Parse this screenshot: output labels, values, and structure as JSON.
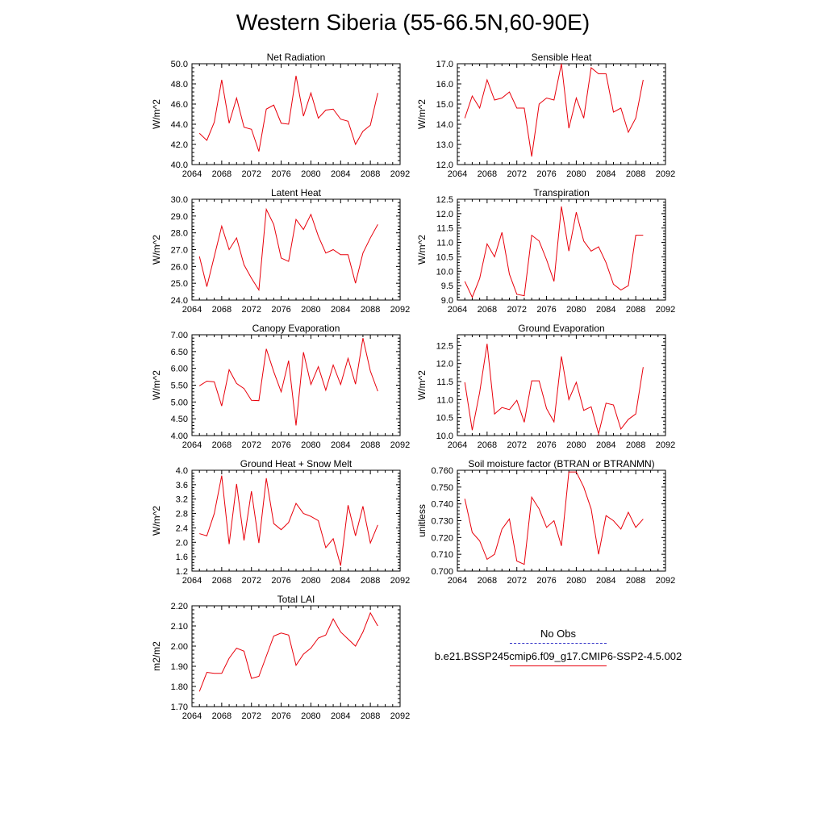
{
  "title": "Western Siberia (55-66.5N,60-90E)",
  "line_color": "#e8000b",
  "obs_color": "#3232c8",
  "legend": {
    "obs_label": "No Obs",
    "model_label": "b.e21.BSSP245cmip6.f09_g17.CMIP6-SSP2-4.5.002"
  },
  "chart_data": [
    {
      "type": "line",
      "title": "Net Radiation",
      "ylabel": "W/m^2",
      "xlim": [
        2064,
        2092
      ],
      "ylim": [
        40.0,
        50.0
      ],
      "xticks": [
        "2064",
        "2068",
        "2072",
        "2076",
        "2080",
        "2084",
        "2088",
        "2092"
      ],
      "yticks": [
        "40.0",
        "42.0",
        "44.0",
        "46.0",
        "48.0",
        "50.0"
      ],
      "x": [
        2065,
        2066,
        2067,
        2068,
        2069,
        2070,
        2071,
        2072,
        2073,
        2074,
        2075,
        2076,
        2077,
        2078,
        2079,
        2080,
        2081,
        2082,
        2083,
        2084,
        2085,
        2086,
        2087,
        2088,
        2089
      ],
      "series": [
        {
          "values": [
            43.1,
            42.4,
            44.2,
            48.4,
            44.1,
            46.6,
            43.7,
            43.5,
            41.3,
            45.5,
            45.9,
            44.1,
            44.0,
            48.8,
            44.8,
            47.1,
            44.6,
            45.4,
            45.5,
            44.5,
            44.3,
            42.0,
            43.3,
            43.9,
            47.1
          ]
        }
      ]
    },
    {
      "type": "line",
      "title": "Sensible Heat",
      "ylabel": "W/m^2",
      "xlim": [
        2064,
        2092
      ],
      "ylim": [
        12.0,
        17.0
      ],
      "xticks": [
        "2064",
        "2068",
        "2072",
        "2076",
        "2080",
        "2084",
        "2088",
        "2092"
      ],
      "yticks": [
        "12.0",
        "13.0",
        "14.0",
        "15.0",
        "16.0",
        "17.0"
      ],
      "x": [
        2065,
        2066,
        2067,
        2068,
        2069,
        2070,
        2071,
        2072,
        2073,
        2074,
        2075,
        2076,
        2077,
        2078,
        2079,
        2080,
        2081,
        2082,
        2083,
        2084,
        2085,
        2086,
        2087,
        2088,
        2089
      ],
      "series": [
        {
          "values": [
            14.3,
            15.4,
            14.8,
            16.2,
            15.2,
            15.3,
            15.6,
            14.8,
            14.8,
            12.4,
            15.0,
            15.3,
            15.2,
            17.0,
            13.8,
            15.3,
            14.3,
            16.8,
            16.5,
            16.5,
            14.6,
            14.8,
            13.6,
            14.3,
            16.2
          ]
        }
      ]
    },
    {
      "type": "line",
      "title": "Latent Heat",
      "ylabel": "W/m^2",
      "xlim": [
        2064,
        2092
      ],
      "ylim": [
        24.0,
        30.0
      ],
      "xticks": [
        "2064",
        "2068",
        "2072",
        "2076",
        "2080",
        "2084",
        "2088",
        "2092"
      ],
      "yticks": [
        "24.0",
        "25.0",
        "26.0",
        "27.0",
        "28.0",
        "29.0",
        "30.0"
      ],
      "x": [
        2065,
        2066,
        2067,
        2068,
        2069,
        2070,
        2071,
        2072,
        2073,
        2074,
        2075,
        2076,
        2077,
        2078,
        2079,
        2080,
        2081,
        2082,
        2083,
        2084,
        2085,
        2086,
        2087,
        2088,
        2089
      ],
      "series": [
        {
          "values": [
            26.6,
            24.8,
            26.6,
            28.4,
            27.0,
            27.7,
            26.1,
            25.3,
            24.6,
            29.4,
            28.5,
            26.5,
            26.3,
            28.8,
            28.2,
            29.1,
            27.8,
            26.8,
            27.0,
            26.7,
            26.7,
            25.0,
            26.8,
            27.7,
            28.5
          ]
        }
      ]
    },
    {
      "type": "line",
      "title": "Transpiration",
      "ylabel": "W/m^2",
      "xlim": [
        2064,
        2092
      ],
      "ylim": [
        9.0,
        12.5
      ],
      "xticks": [
        "2064",
        "2068",
        "2072",
        "2076",
        "2080",
        "2084",
        "2088",
        "2092"
      ],
      "yticks": [
        "9.0",
        "9.5",
        "10.0",
        "10.5",
        "11.0",
        "11.5",
        "12.0",
        "12.5"
      ],
      "x": [
        2065,
        2066,
        2067,
        2068,
        2069,
        2070,
        2071,
        2072,
        2073,
        2074,
        2075,
        2076,
        2077,
        2078,
        2079,
        2080,
        2081,
        2082,
        2083,
        2084,
        2085,
        2086,
        2087,
        2088,
        2089
      ],
      "series": [
        {
          "values": [
            9.65,
            9.1,
            9.75,
            10.95,
            10.5,
            11.35,
            9.9,
            9.2,
            9.15,
            11.25,
            11.05,
            10.4,
            9.65,
            12.25,
            10.7,
            12.05,
            11.05,
            10.7,
            10.85,
            10.3,
            9.55,
            9.35,
            9.5,
            11.25,
            11.25
          ]
        }
      ]
    },
    {
      "type": "line",
      "title": "Canopy Evaporation",
      "ylabel": "W/m^2",
      "xlim": [
        2064,
        2092
      ],
      "ylim": [
        4.0,
        7.0
      ],
      "xticks": [
        "2064",
        "2068",
        "2072",
        "2076",
        "2080",
        "2084",
        "2088",
        "2092"
      ],
      "yticks": [
        "4.00",
        "4.50",
        "5.00",
        "5.50",
        "6.00",
        "6.50",
        "7.00"
      ],
      "x": [
        2065,
        2066,
        2067,
        2068,
        2069,
        2070,
        2071,
        2072,
        2073,
        2074,
        2075,
        2076,
        2077,
        2078,
        2079,
        2080,
        2081,
        2082,
        2083,
        2084,
        2085,
        2086,
        2087,
        2088,
        2089
      ],
      "series": [
        {
          "values": [
            5.48,
            5.62,
            5.6,
            4.88,
            5.96,
            5.55,
            5.4,
            5.05,
            5.04,
            6.58,
            5.9,
            5.3,
            6.23,
            4.3,
            6.48,
            5.52,
            6.05,
            5.35,
            6.1,
            5.52,
            6.3,
            5.53,
            6.9,
            5.92,
            5.32
          ]
        }
      ]
    },
    {
      "type": "line",
      "title": "Ground Evaporation",
      "ylabel": "W/m^2",
      "xlim": [
        2064,
        2092
      ],
      "ylim": [
        10.0,
        12.8
      ],
      "xticks": [
        "2064",
        "2068",
        "2072",
        "2076",
        "2080",
        "2084",
        "2088",
        "2092"
      ],
      "yticks": [
        "10.0",
        "10.5",
        "11.0",
        "11.5",
        "12.0",
        "12.5"
      ],
      "x": [
        2065,
        2066,
        2067,
        2068,
        2069,
        2070,
        2071,
        2072,
        2073,
        2074,
        2075,
        2076,
        2077,
        2078,
        2079,
        2080,
        2081,
        2082,
        2083,
        2084,
        2085,
        2086,
        2087,
        2088,
        2089
      ],
      "series": [
        {
          "values": [
            11.48,
            10.15,
            11.2,
            12.55,
            10.6,
            10.78,
            10.72,
            10.98,
            10.37,
            11.52,
            11.52,
            10.75,
            10.38,
            12.2,
            11.0,
            11.48,
            10.7,
            10.8,
            10.05,
            10.9,
            10.85,
            10.18,
            10.45,
            10.6,
            11.9
          ]
        }
      ]
    },
    {
      "type": "line",
      "title": "Ground Heat + Snow Melt",
      "ylabel": "W/m^2",
      "xlim": [
        2064,
        2092
      ],
      "ylim": [
        1.2,
        4.0
      ],
      "xticks": [
        "2064",
        "2068",
        "2072",
        "2076",
        "2080",
        "2084",
        "2088",
        "2092"
      ],
      "yticks": [
        "1.2",
        "1.6",
        "2.0",
        "2.4",
        "2.8",
        "3.2",
        "3.6",
        "4.0"
      ],
      "x": [
        2065,
        2066,
        2067,
        2068,
        2069,
        2070,
        2071,
        2072,
        2073,
        2074,
        2075,
        2076,
        2077,
        2078,
        2079,
        2080,
        2081,
        2082,
        2083,
        2084,
        2085,
        2086,
        2087,
        2088,
        2089
      ],
      "series": [
        {
          "values": [
            2.24,
            2.18,
            2.8,
            3.85,
            1.95,
            3.62,
            2.05,
            3.42,
            1.98,
            3.78,
            2.52,
            2.35,
            2.55,
            3.08,
            2.8,
            2.72,
            2.6,
            1.85,
            2.1,
            1.35,
            3.03,
            2.18,
            3.0,
            1.98,
            2.48
          ]
        }
      ]
    },
    {
      "type": "line",
      "title": "Soil moisture factor (BTRAN or BTRANMN)",
      "ylabel": "unitless",
      "xlim": [
        2064,
        2092
      ],
      "ylim": [
        0.7,
        0.76
      ],
      "xticks": [
        "2064",
        "2068",
        "2072",
        "2076",
        "2080",
        "2084",
        "2088",
        "2092"
      ],
      "yticks": [
        "0.700",
        "0.710",
        "0.720",
        "0.730",
        "0.740",
        "0.750",
        "0.760"
      ],
      "x": [
        2065,
        2066,
        2067,
        2068,
        2069,
        2070,
        2071,
        2072,
        2073,
        2074,
        2075,
        2076,
        2077,
        2078,
        2079,
        2080,
        2081,
        2082,
        2083,
        2084,
        2085,
        2086,
        2087,
        2088,
        2089
      ],
      "series": [
        {
          "values": [
            0.743,
            0.723,
            0.718,
            0.707,
            0.71,
            0.725,
            0.731,
            0.706,
            0.704,
            0.744,
            0.737,
            0.726,
            0.73,
            0.715,
            0.759,
            0.759,
            0.75,
            0.737,
            0.71,
            0.733,
            0.73,
            0.725,
            0.735,
            0.726,
            0.731
          ]
        }
      ]
    },
    {
      "type": "line",
      "title": "Total LAI",
      "ylabel": "m2/m2",
      "xlim": [
        2064,
        2092
      ],
      "ylim": [
        1.7,
        2.2
      ],
      "xticks": [
        "2064",
        "2068",
        "2072",
        "2076",
        "2080",
        "2084",
        "2088",
        "2092"
      ],
      "yticks": [
        "1.70",
        "1.80",
        "1.90",
        "2.00",
        "2.10",
        "2.20"
      ],
      "x": [
        2065,
        2066,
        2067,
        2068,
        2069,
        2070,
        2071,
        2072,
        2073,
        2074,
        2075,
        2076,
        2077,
        2078,
        2079,
        2080,
        2081,
        2082,
        2083,
        2084,
        2085,
        2086,
        2087,
        2088,
        2089
      ],
      "series": [
        {
          "values": [
            1.775,
            1.87,
            1.865,
            1.865,
            1.94,
            1.99,
            1.975,
            1.84,
            1.85,
            1.95,
            2.05,
            2.065,
            2.055,
            1.905,
            1.96,
            1.99,
            2.04,
            2.055,
            2.135,
            2.07,
            2.035,
            2.0,
            2.07,
            2.165,
            2.1
          ]
        }
      ]
    }
  ]
}
